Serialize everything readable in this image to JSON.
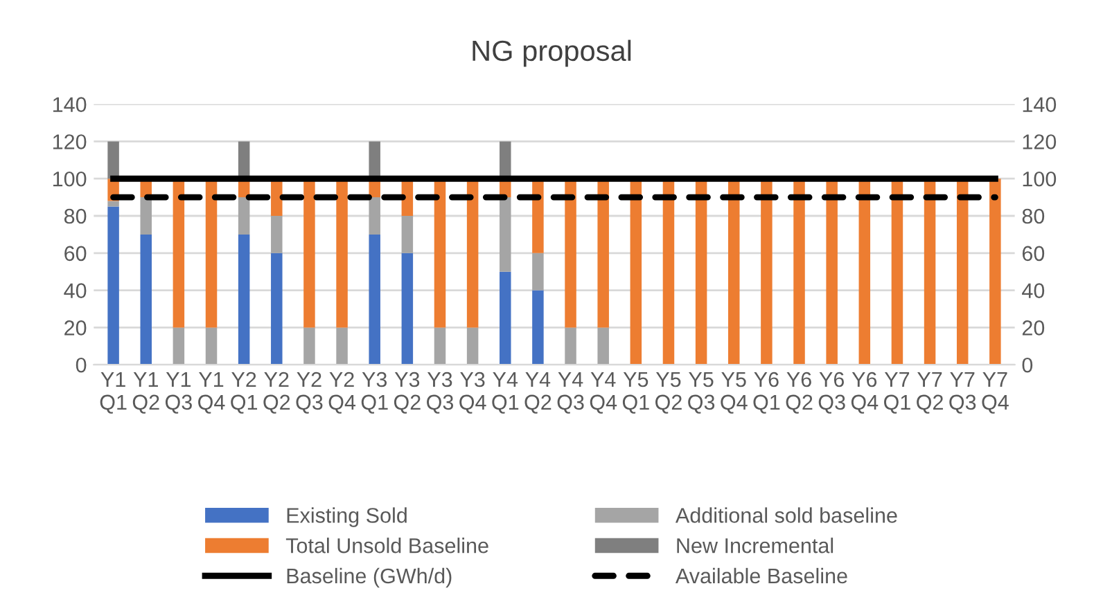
{
  "chart_data": {
    "type": "bar",
    "title": "NG proposal",
    "stacked": true,
    "categories": [
      "Y1\nQ1",
      "Y1\nQ2",
      "Y1\nQ3",
      "Y1\nQ4",
      "Y2\nQ1",
      "Y2\nQ2",
      "Y2\nQ3",
      "Y2\nQ4",
      "Y3\nQ1",
      "Y3\nQ2",
      "Y3\nQ3",
      "Y3\nQ4",
      "Y4\nQ1",
      "Y4\nQ2",
      "Y4\nQ3",
      "Y4\nQ4",
      "Y5\nQ1",
      "Y5\nQ2",
      "Y5\nQ3",
      "Y5\nQ4",
      "Y6\nQ1",
      "Y6\nQ2",
      "Y6\nQ3",
      "Y6\nQ4",
      "Y7\nQ1",
      "Y7\nQ2",
      "Y7\nQ3",
      "Y7\nQ4"
    ],
    "series": [
      {
        "name": "Existing Sold",
        "color": "#4472c4",
        "values": [
          85,
          70,
          0,
          0,
          70,
          60,
          0,
          0,
          70,
          60,
          0,
          0,
          50,
          40,
          0,
          0,
          0,
          0,
          0,
          0,
          0,
          0,
          0,
          0,
          0,
          0,
          0,
          0
        ]
      },
      {
        "name": "Additional sold baseline",
        "color": "#a5a5a5",
        "values": [
          3,
          20,
          20,
          20,
          20,
          20,
          20,
          20,
          20,
          20,
          20,
          20,
          40,
          20,
          20,
          20,
          0,
          0,
          0,
          0,
          0,
          0,
          0,
          0,
          0,
          0,
          0,
          0
        ]
      },
      {
        "name": "Total Unsold Baseline",
        "color": "#ed7d31",
        "values": [
          12,
          10,
          80,
          80,
          10,
          20,
          80,
          80,
          10,
          20,
          80,
          80,
          10,
          40,
          80,
          80,
          100,
          100,
          100,
          100,
          100,
          100,
          100,
          100,
          100,
          100,
          100,
          100
        ]
      },
      {
        "name": "New Incremental",
        "color": "#7f7f7f",
        "values": [
          20,
          0,
          0,
          0,
          20,
          0,
          0,
          0,
          20,
          0,
          0,
          0,
          20,
          0,
          0,
          0,
          0,
          0,
          0,
          0,
          0,
          0,
          0,
          0,
          0,
          0,
          0,
          0
        ]
      },
      {
        "name": "Baseline (GWh/d)",
        "type": "line",
        "color": "#000000",
        "line_style": "solid",
        "values": [
          100,
          100,
          100,
          100,
          100,
          100,
          100,
          100,
          100,
          100,
          100,
          100,
          100,
          100,
          100,
          100,
          100,
          100,
          100,
          100,
          100,
          100,
          100,
          100,
          100,
          100,
          100,
          100
        ]
      },
      {
        "name": "Available Baseline",
        "type": "line",
        "color": "#000000",
        "line_style": "dashed",
        "values": [
          90,
          90,
          90,
          90,
          90,
          90,
          90,
          90,
          90,
          90,
          90,
          90,
          90,
          90,
          90,
          90,
          90,
          90,
          90,
          90,
          90,
          90,
          90,
          90,
          90,
          90,
          90,
          90
        ]
      }
    ],
    "ylim": [
      0,
      140
    ],
    "yticks": [
      0,
      20,
      40,
      60,
      80,
      100,
      120,
      140
    ],
    "y2lim": [
      0,
      140
    ],
    "y2ticks": [
      0,
      20,
      40,
      60,
      80,
      100,
      120,
      140
    ],
    "grid": "y",
    "legend": "bottom"
  }
}
